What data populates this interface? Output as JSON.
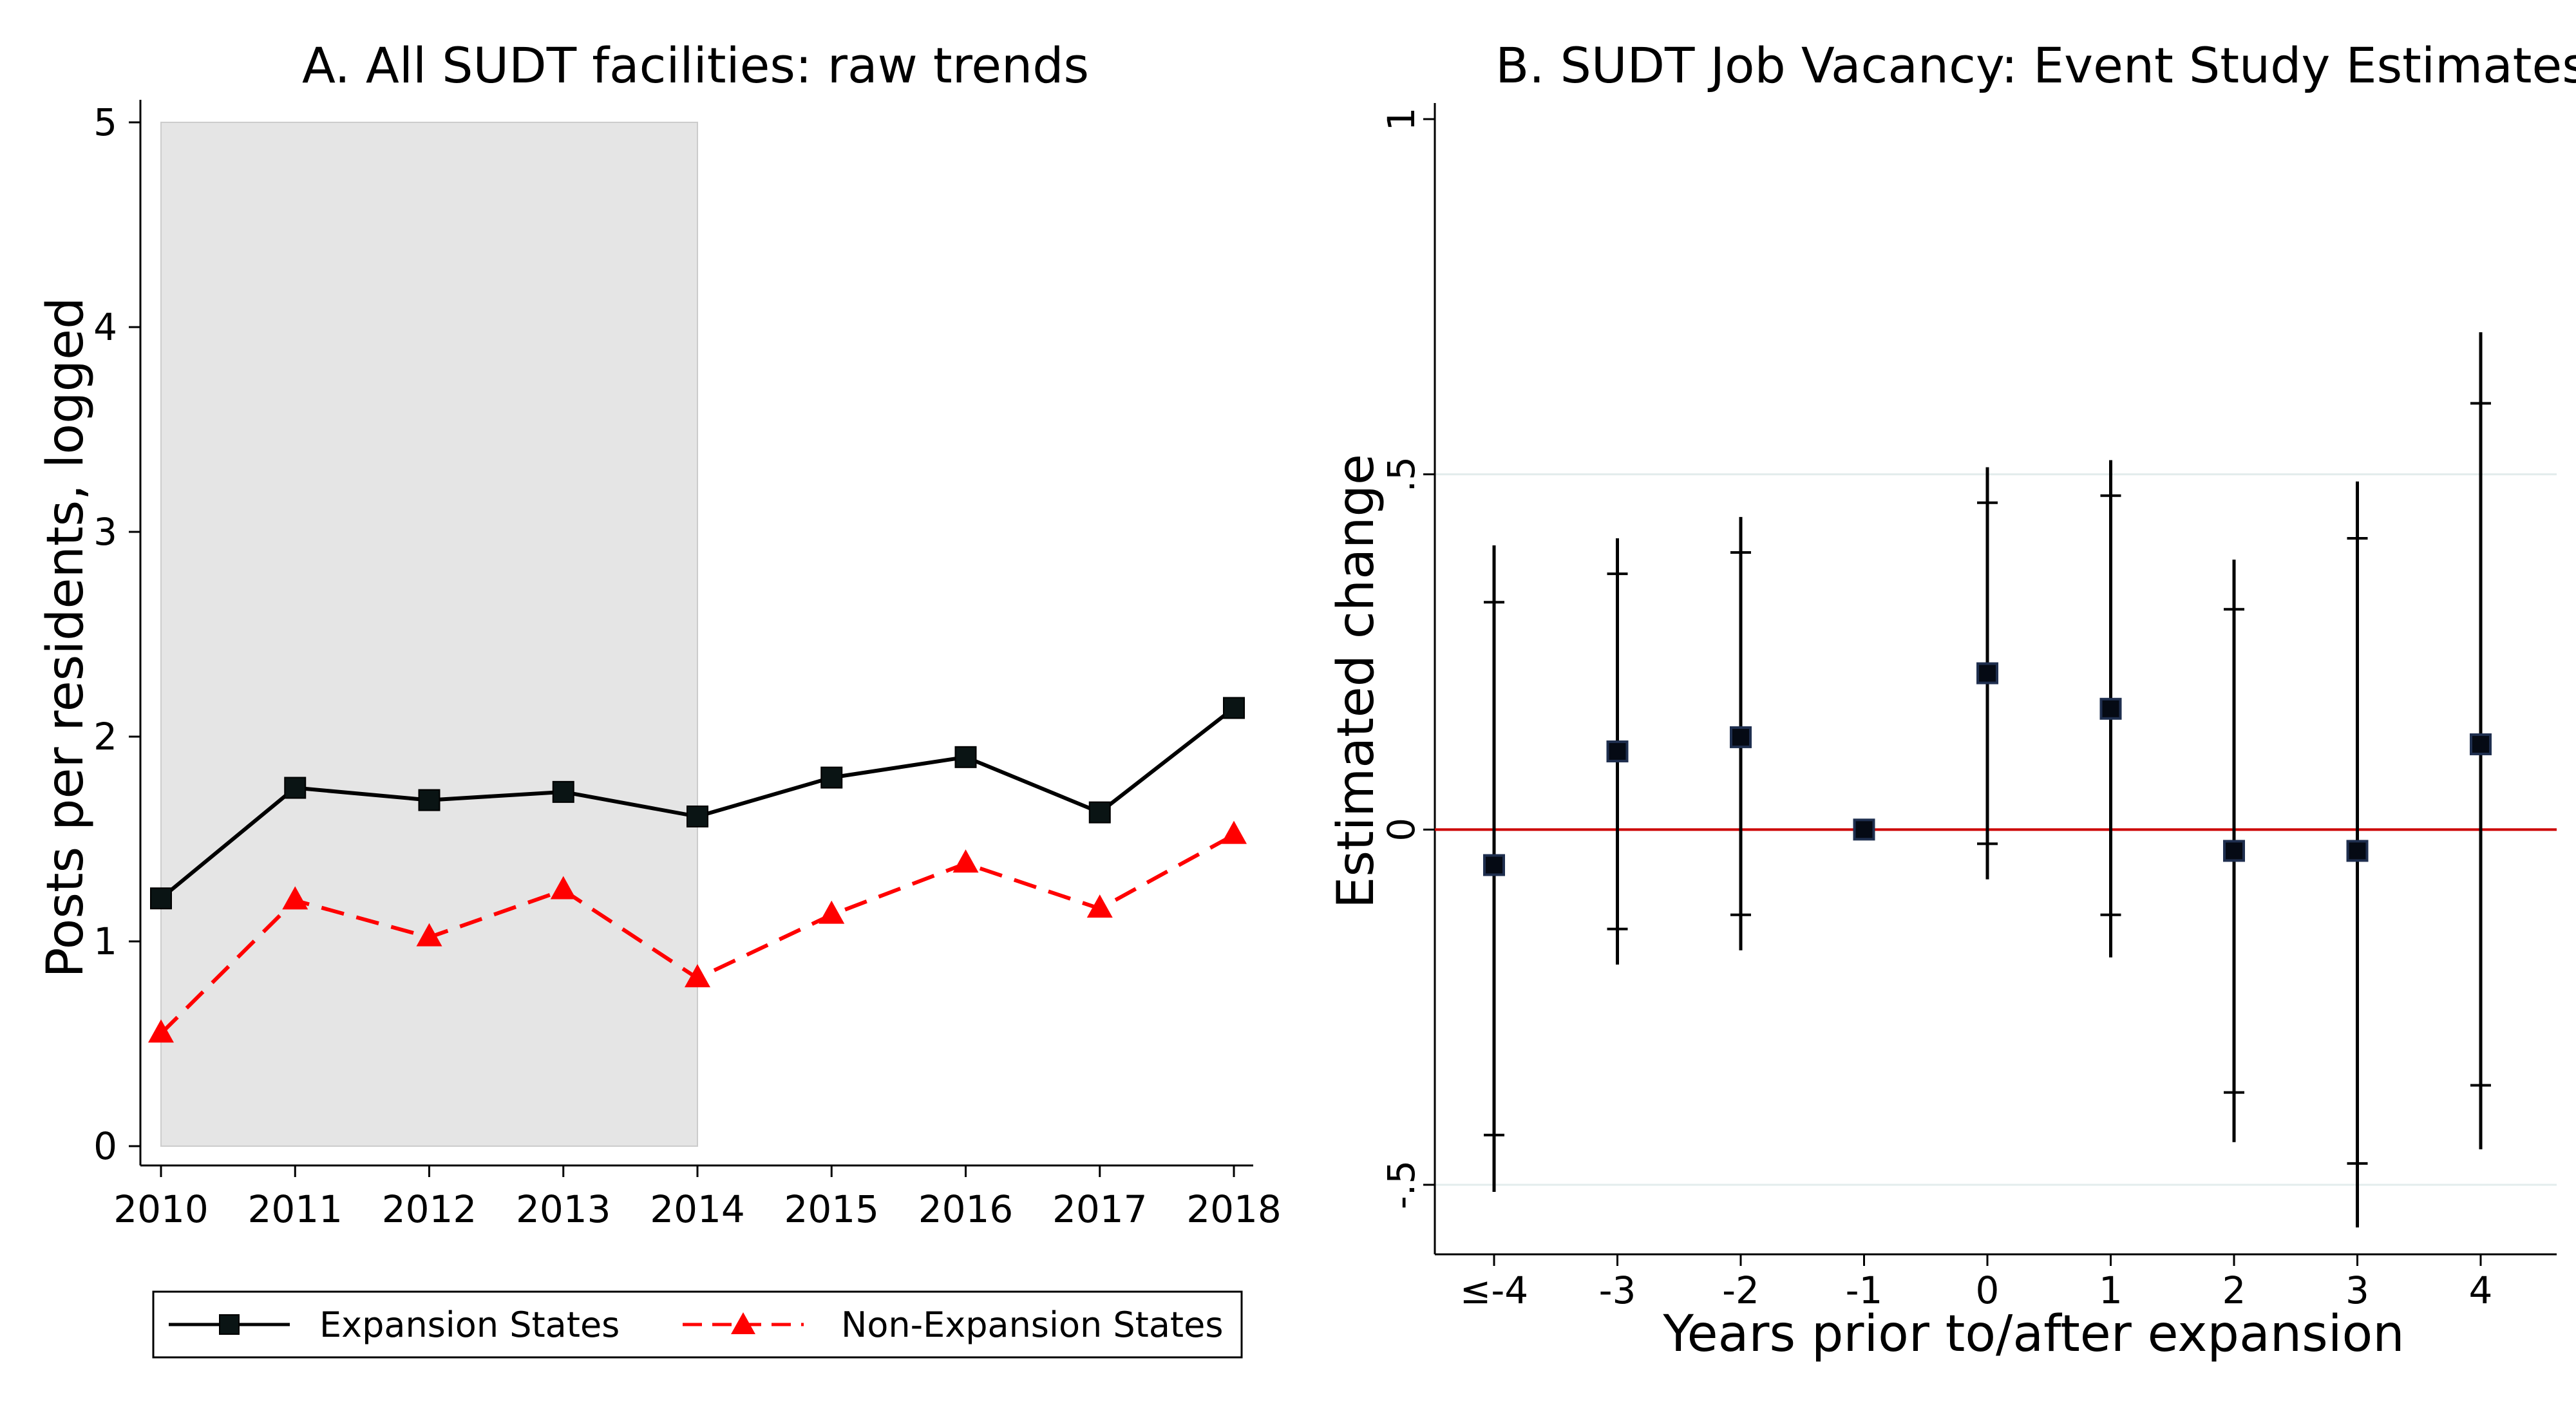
{
  "colors": {
    "expansion": "#000000",
    "non_expansion": "#ff0000",
    "shade": "#e5e5e5",
    "zero_line": "#cc0000",
    "marker_edge": "#1f2f4f"
  },
  "chart_data": [
    {
      "type": "line",
      "title": "A. All SUDT facilities: raw trends",
      "xlabel": "",
      "ylabel": "Posts per residents, logged",
      "x": [
        2010,
        2011,
        2012,
        2013,
        2014,
        2015,
        2016,
        2017,
        2018
      ],
      "x_tick_labels": [
        "2010",
        "2011",
        "2012",
        "2013",
        "2014",
        "2015",
        "2016",
        "2017",
        "2018"
      ],
      "y_tick_labels": [
        "0",
        "1",
        "2",
        "3",
        "4",
        "5"
      ],
      "ylim": [
        0,
        5
      ],
      "xlim": [
        2010,
        2018
      ],
      "shaded_region": [
        2010,
        2014
      ],
      "grid": false,
      "legend_position": "bottom",
      "series": [
        {
          "name": "Expansion States",
          "marker": "square",
          "style": "solid",
          "color": "#000000",
          "values": [
            1.21,
            1.75,
            1.69,
            1.73,
            1.61,
            1.8,
            1.9,
            1.63,
            2.14
          ]
        },
        {
          "name": "Non-Expansion States",
          "marker": "triangle",
          "style": "dashed",
          "color": "#ff0000",
          "values": [
            0.55,
            1.2,
            1.02,
            1.25,
            0.82,
            1.13,
            1.38,
            1.16,
            1.52
          ]
        }
      ]
    },
    {
      "type": "scatter",
      "title": "B. SUDT Job Vacancy: Event Study Estimates",
      "xlabel": "Years prior to/after expansion",
      "ylabel": "Estimated change",
      "categories": [
        "≤-4",
        "-3",
        "-2",
        "-1",
        "0",
        "1",
        "2",
        "3",
        "4"
      ],
      "y_tick_labels": [
        "-.5",
        "0",
        ".5",
        "1"
      ],
      "ylim": [
        -0.6,
        1
      ],
      "grid": true,
      "reference_line": 0,
      "points": [
        {
          "x": "≤-4",
          "estimate": -0.05,
          "ci90": [
            -0.43,
            0.32
          ],
          "ci95": [
            -0.51,
            0.4
          ]
        },
        {
          "x": "-3",
          "estimate": 0.11,
          "ci90": [
            -0.14,
            0.36
          ],
          "ci95": [
            -0.19,
            0.41
          ]
        },
        {
          "x": "-2",
          "estimate": 0.13,
          "ci90": [
            -0.12,
            0.39
          ],
          "ci95": [
            -0.17,
            0.44
          ]
        },
        {
          "x": "-1",
          "estimate": 0.0,
          "ci90": [
            0.0,
            0.0
          ],
          "ci95": [
            0.0,
            0.0
          ]
        },
        {
          "x": "0",
          "estimate": 0.22,
          "ci90": [
            -0.02,
            0.46
          ],
          "ci95": [
            -0.07,
            0.51
          ]
        },
        {
          "x": "1",
          "estimate": 0.17,
          "ci90": [
            -0.12,
            0.47
          ],
          "ci95": [
            -0.18,
            0.52
          ]
        },
        {
          "x": "2",
          "estimate": -0.03,
          "ci90": [
            -0.37,
            0.31
          ],
          "ci95": [
            -0.44,
            0.38
          ]
        },
        {
          "x": "3",
          "estimate": -0.03,
          "ci90": [
            -0.47,
            0.41
          ],
          "ci95": [
            -0.56,
            0.49
          ]
        },
        {
          "x": "4",
          "estimate": 0.12,
          "ci90": [
            -0.36,
            0.6
          ],
          "ci95": [
            -0.45,
            0.7
          ]
        }
      ]
    }
  ]
}
